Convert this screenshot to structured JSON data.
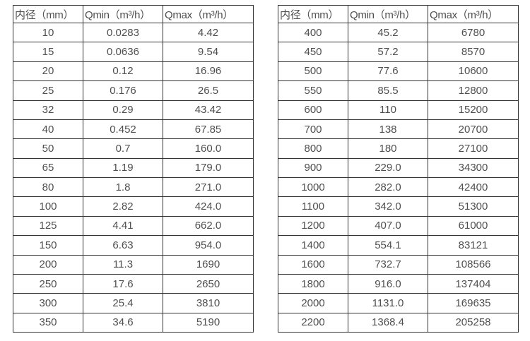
{
  "page": {
    "background": "#ffffff",
    "text_color": "#4f4f4f",
    "border_color": "#333333"
  },
  "tables": [
    {
      "name": "flow-spec-table-left",
      "headers": [
        "内径（mm）",
        "Qmin（m³/h）",
        "Qmax（m³/h）"
      ],
      "rows": [
        [
          "10",
          "0.0283",
          "4.42"
        ],
        [
          "15",
          "0.0636",
          "9.54"
        ],
        [
          "20",
          "0.12",
          "16.96"
        ],
        [
          "25",
          "0.176",
          "26.5"
        ],
        [
          "32",
          "0.29",
          "43.42"
        ],
        [
          "40",
          "0.452",
          "67.85"
        ],
        [
          "50",
          "0.7",
          "160.0"
        ],
        [
          "65",
          "1.19",
          "179.0"
        ],
        [
          "80",
          "1.8",
          "271.0"
        ],
        [
          "100",
          "2.82",
          "424.0"
        ],
        [
          "125",
          "4.41",
          "662.0"
        ],
        [
          "150",
          "6.63",
          "954.0"
        ],
        [
          "200",
          "11.3",
          "1690"
        ],
        [
          "250",
          "17.6",
          "2650"
        ],
        [
          "300",
          "25.4",
          "3810"
        ],
        [
          "350",
          "34.6",
          "5190"
        ]
      ]
    },
    {
      "name": "flow-spec-table-right",
      "headers": [
        "内径（mm）",
        "Qmin（m³/h）",
        "Qmax（m³/h）"
      ],
      "rows": [
        [
          "400",
          "45.2",
          "6780"
        ],
        [
          "450",
          "57.2",
          "8570"
        ],
        [
          "500",
          "77.6",
          "10600"
        ],
        [
          "550",
          "85.5",
          "12800"
        ],
        [
          "600",
          "110",
          "15200"
        ],
        [
          "700",
          "138",
          "20700"
        ],
        [
          "800",
          "180",
          "27100"
        ],
        [
          "900",
          "229.0",
          "34300"
        ],
        [
          "1000",
          "282.0",
          "42400"
        ],
        [
          "1100",
          "342.0",
          "51300"
        ],
        [
          "1200",
          "407.0",
          "61000"
        ],
        [
          "1400",
          "554.1",
          "83121"
        ],
        [
          "1600",
          "732.7",
          "108566"
        ],
        [
          "1800",
          "916.0",
          "137404"
        ],
        [
          "2000",
          "1131.0",
          "169635"
        ],
        [
          "2200",
          "1368.4",
          "205258"
        ]
      ]
    }
  ]
}
